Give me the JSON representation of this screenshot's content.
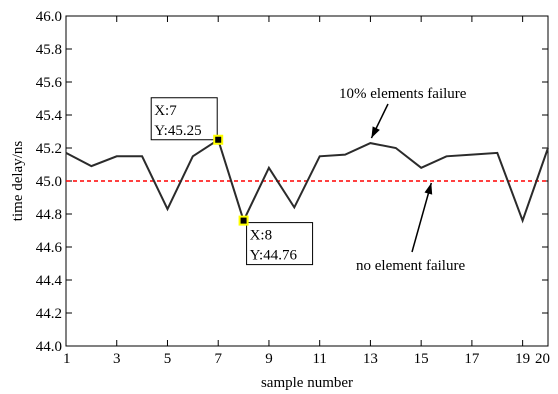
{
  "chart_data": {
    "type": "line",
    "title": "",
    "xlabel": "sample number",
    "ylabel": "time delay/ns",
    "xlim": [
      1,
      20
    ],
    "ylim": [
      44.0,
      46.0
    ],
    "x_ticks": [
      1,
      3,
      5,
      7,
      9,
      11,
      13,
      15,
      17,
      19,
      20
    ],
    "y_ticks": [
      "44.0",
      "44.2",
      "44.4",
      "44.6",
      "44.8",
      "45.0",
      "45.2",
      "45.4",
      "45.6",
      "45.8",
      "46.0"
    ],
    "grid": false,
    "series": [
      {
        "name": "10% elements failure",
        "color": "#2b2b2b",
        "x": [
          1,
          2,
          3,
          4,
          5,
          6,
          7,
          8,
          9,
          10,
          11,
          12,
          13,
          14,
          15,
          16,
          17,
          18,
          19,
          20
        ],
        "y": [
          45.17,
          45.09,
          45.15,
          45.15,
          44.83,
          45.15,
          45.25,
          44.76,
          45.08,
          44.84,
          45.15,
          45.16,
          45.23,
          45.2,
          45.08,
          45.15,
          45.16,
          45.17,
          44.76,
          45.2
        ]
      },
      {
        "name": "no element failure",
        "color": "#ff0000",
        "style": "dashed",
        "x": [
          1,
          20
        ],
        "y": [
          45.0,
          45.0
        ]
      }
    ],
    "datatips": [
      {
        "x": 7,
        "y": 45.25,
        "label_x": "X:7",
        "label_y": "Y:45.25"
      },
      {
        "x": 8,
        "y": 44.76,
        "label_x": "X:8",
        "label_y": "Y:44.76"
      }
    ],
    "annotations": [
      {
        "text": "10% elements failure",
        "target_x": 13,
        "target_y": 45.23
      },
      {
        "text": "no element failure",
        "target_x": 15.4,
        "target_y": 45.0
      }
    ]
  }
}
